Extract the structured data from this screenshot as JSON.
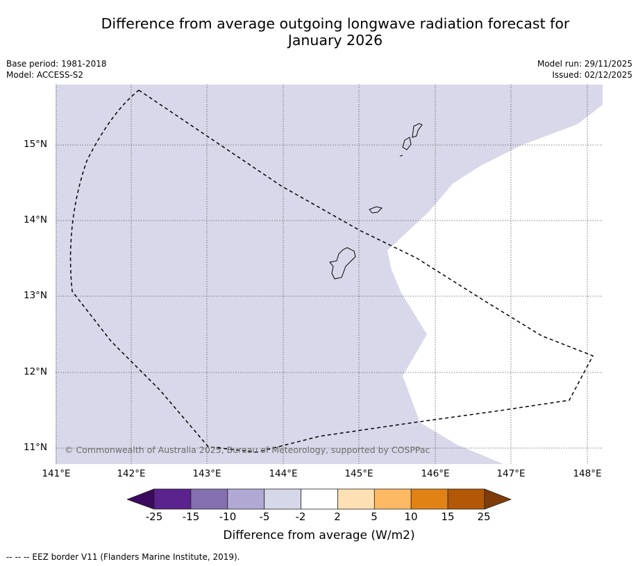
{
  "title_line1": "Difference from average outgoing longwave radiation forecast for",
  "title_line2": "January 2026",
  "meta_left": [
    "Base period: 1981-2018",
    "Model: ACCESS-S2"
  ],
  "meta_right": [
    "Model run: 29/11/2025",
    "Issued: 02/12/2025"
  ],
  "y_ticks": [
    "15°N",
    "14°N",
    "13°N",
    "12°N",
    "11°N"
  ],
  "x_ticks": [
    "141°E",
    "142°E",
    "143°E",
    "144°E",
    "145°E",
    "146°E",
    "147°E",
    "148°E"
  ],
  "copyright": "© Commonwealth of Australia 2025, Bureau of Meteorology, supported by COSPPac",
  "colorbar": {
    "labels": [
      "-25",
      "-15",
      "-10",
      "-5",
      "-2",
      "2",
      "5",
      "10",
      "15",
      "25"
    ],
    "colors": [
      "#3b0a5e",
      "#5a238e",
      "#8470b0",
      "#b1a9d4",
      "#d7d7ea",
      "#ffffff",
      "#fde0b3",
      "#fdb863",
      "#e08214",
      "#b35806",
      "#7f3b08"
    ],
    "title": "Difference from average (W/m2)"
  },
  "footnote": "--  --  -- EEZ border V11 (Flanders Marine Institute, 2019).",
  "legend_fill_color": "#d8d8ea"
}
